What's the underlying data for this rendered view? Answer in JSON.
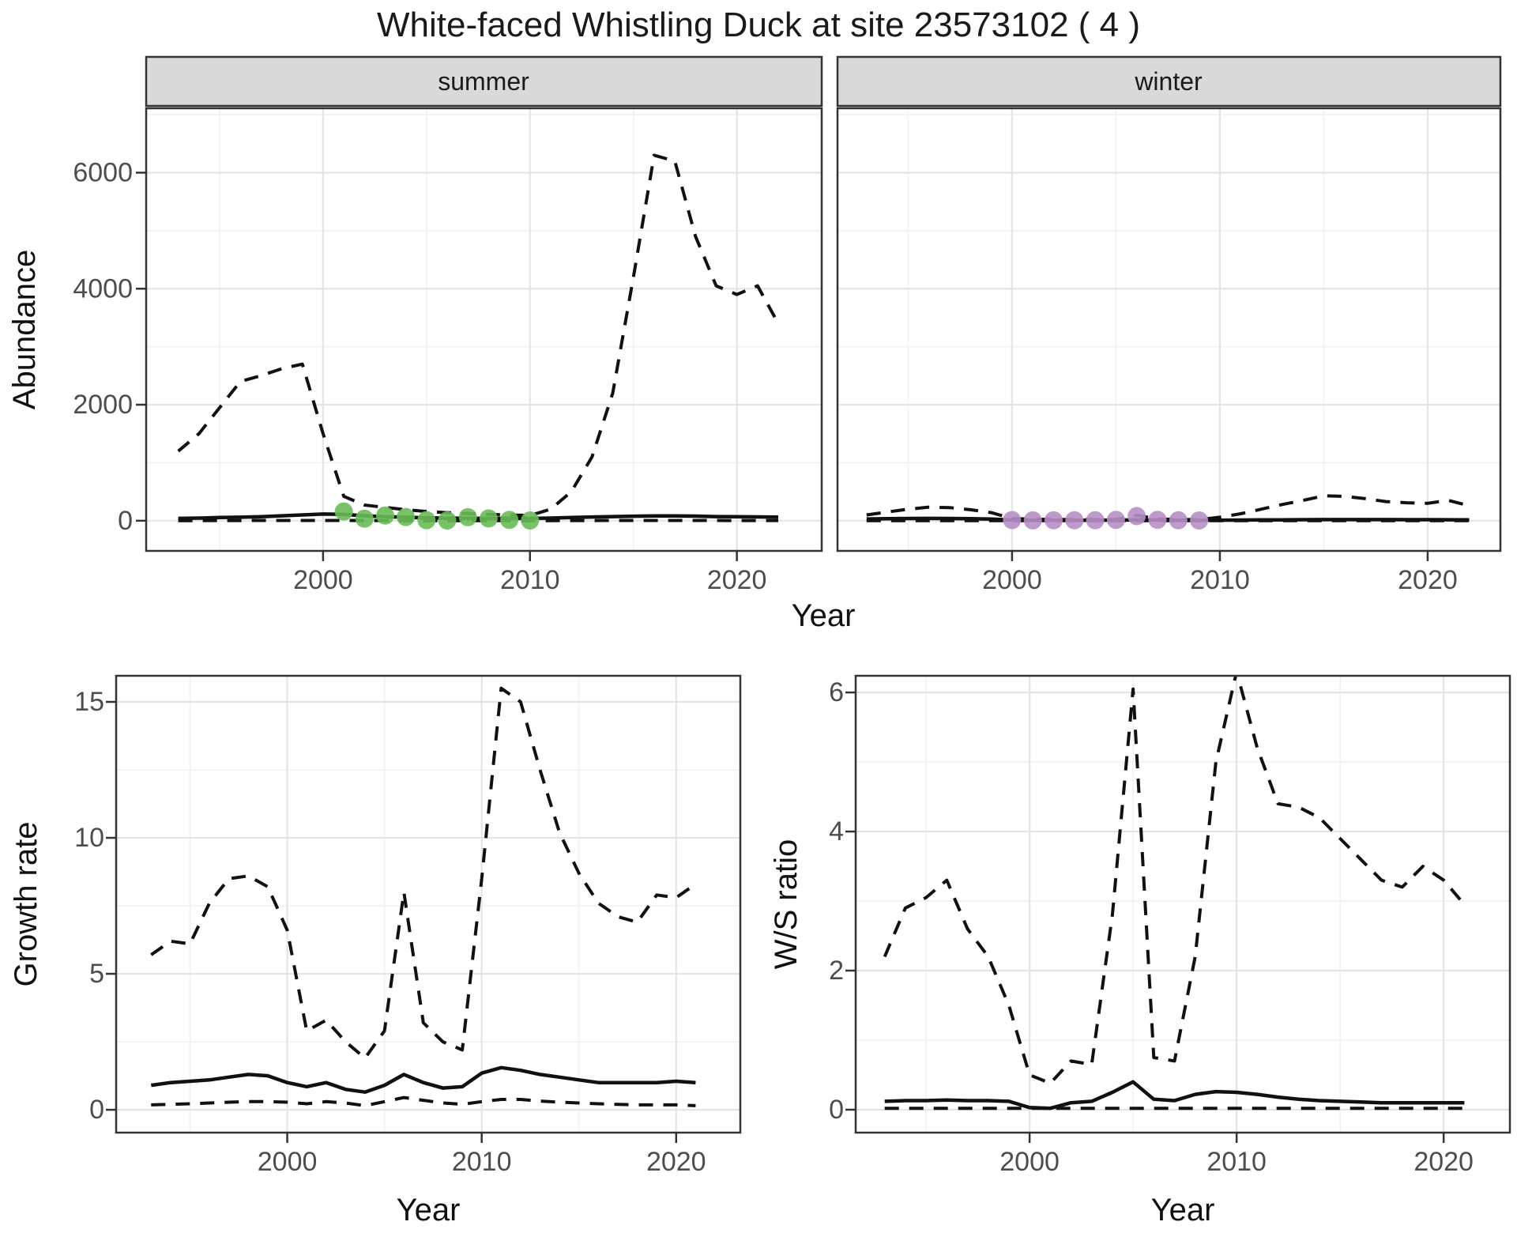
{
  "title": "White-faced Whistling Duck at site 23573102 ( 4 )",
  "facets": {
    "summer": "summer",
    "winter": "winter"
  },
  "axes": {
    "top": {
      "xlabel": "Year",
      "ylabel": "Abundance"
    },
    "bottom_left": {
      "xlabel": "Year",
      "ylabel": "Growth rate"
    },
    "bottom_right": {
      "xlabel": "Year",
      "ylabel": "W/S ratio"
    }
  },
  "colors": {
    "summer_points": "#69BD57",
    "winter_points": "#B78FC6",
    "line": "#111111",
    "strip_bg": "#D9D9D9",
    "panel_border": "#333333",
    "grid_major": "#E4E4E4",
    "grid_minor": "#F1F1F1",
    "tick_label": "#4d4d4d",
    "text": "#1a1a1a"
  },
  "chart_data": [
    {
      "id": "abundance-summer",
      "type": "line",
      "facet": "summer",
      "xlabel": "Year",
      "ylabel": "Abundance",
      "xlim": [
        1991.45,
        2024.1
      ],
      "ylim": [
        -520,
        7110
      ],
      "x_ticks": [
        2000,
        2010,
        2020
      ],
      "x_minor": [
        1995,
        2005,
        2015
      ],
      "y_ticks": [
        0,
        2000,
        4000,
        6000
      ],
      "y_minor": [
        1000,
        3000,
        5000,
        7000
      ],
      "years": [
        1993,
        1994,
        1995,
        1996,
        1997,
        1998,
        1999,
        2000,
        2001,
        2002,
        2003,
        2004,
        2005,
        2006,
        2007,
        2008,
        2009,
        2010,
        2011,
        2012,
        2013,
        2014,
        2015,
        2016,
        2017,
        2018,
        2019,
        2020,
        2021,
        2022
      ],
      "series": [
        {
          "name": "upper-ci",
          "style": "dashed",
          "values": [
            1200,
            1500,
            1950,
            2400,
            2500,
            2620,
            2700,
            1500,
            420,
            270,
            230,
            190,
            160,
            140,
            125,
            110,
            100,
            90,
            200,
            500,
            1100,
            2200,
            4200,
            6300,
            6200,
            4900,
            4050,
            3900,
            4050,
            3400
          ]
        },
        {
          "name": "median",
          "style": "solid",
          "values": [
            40,
            45,
            55,
            60,
            70,
            85,
            100,
            115,
            110,
            85,
            70,
            60,
            50,
            45,
            42,
            40,
            40,
            40,
            45,
            55,
            65,
            72,
            78,
            82,
            83,
            80,
            72,
            68,
            66,
            62
          ]
        },
        {
          "name": "lower-ci",
          "style": "dashed",
          "values": [
            2,
            2,
            3,
            3,
            4,
            4,
            5,
            5,
            4,
            3,
            3,
            2,
            2,
            2,
            2,
            2,
            2,
            2,
            2,
            3,
            3,
            4,
            4,
            5,
            5,
            4,
            4,
            3,
            3,
            3
          ]
        }
      ],
      "points": {
        "name": "observed-summer",
        "color_key": "summer_points",
        "years": [
          2001,
          2002,
          2003,
          2004,
          2005,
          2006,
          2007,
          2008,
          2009,
          2010
        ],
        "values": [
          160,
          35,
          90,
          65,
          10,
          5,
          60,
          40,
          15,
          5
        ]
      }
    },
    {
      "id": "abundance-winter",
      "type": "line",
      "facet": "winter",
      "xlabel": "Year",
      "ylabel": "Abundance",
      "xlim": [
        1991.6,
        2023.5
      ],
      "ylim": [
        -520,
        7110
      ],
      "x_ticks": [
        2000,
        2010,
        2020
      ],
      "x_minor": [
        1995,
        2005,
        2015
      ],
      "y_ticks": [
        0,
        2000,
        4000,
        6000
      ],
      "y_minor": [
        1000,
        3000,
        5000,
        7000
      ],
      "years": [
        1993,
        1994,
        1995,
        1996,
        1997,
        1998,
        1999,
        2000,
        2001,
        2002,
        2003,
        2004,
        2005,
        2006,
        2007,
        2008,
        2009,
        2010,
        2011,
        2012,
        2013,
        2014,
        2015,
        2016,
        2017,
        2018,
        2019,
        2020,
        2021,
        2022
      ],
      "series": [
        {
          "name": "upper-ci",
          "style": "dashed",
          "values": [
            100,
            150,
            200,
            235,
            225,
            190,
            140,
            40,
            25,
            22,
            20,
            20,
            22,
            95,
            30,
            22,
            20,
            60,
            120,
            200,
            280,
            350,
            430,
            420,
            380,
            330,
            310,
            300,
            350,
            260
          ]
        },
        {
          "name": "median",
          "style": "solid",
          "values": [
            30,
            34,
            38,
            40,
            38,
            34,
            28,
            12,
            8,
            8,
            8,
            8,
            10,
            14,
            12,
            10,
            8,
            10,
            12,
            14,
            16,
            18,
            20,
            20,
            20,
            19,
            18,
            18,
            17,
            16
          ]
        },
        {
          "name": "lower-ci",
          "style": "dashed",
          "values": [
            1,
            1,
            1,
            2,
            2,
            1,
            1,
            0,
            0,
            0,
            0,
            0,
            0,
            0,
            0,
            0,
            0,
            0,
            0,
            0,
            1,
            1,
            1,
            1,
            1,
            1,
            1,
            1,
            1,
            1
          ]
        }
      ],
      "points": {
        "name": "observed-winter",
        "color_key": "winter_points",
        "years": [
          2000,
          2001,
          2002,
          2003,
          2004,
          2005,
          2006,
          2007,
          2008,
          2009
        ],
        "values": [
          12,
          6,
          9,
          7,
          8,
          14,
          80,
          16,
          8,
          5
        ]
      }
    },
    {
      "id": "growth-rate",
      "type": "line",
      "facet": null,
      "xlabel": "Year",
      "ylabel": "Growth rate",
      "xlim": [
        1991.2,
        2023.3
      ],
      "ylim": [
        -0.84,
        15.96
      ],
      "x_ticks": [
        2000,
        2010,
        2020
      ],
      "x_minor": [
        1995,
        2005,
        2015
      ],
      "y_ticks": [
        0,
        5,
        10,
        15
      ],
      "y_minor": [
        2.5,
        7.5,
        12.5
      ],
      "years": [
        1993,
        1994,
        1995,
        1996,
        1997,
        1998,
        1999,
        2000,
        2001,
        2002,
        2003,
        2004,
        2005,
        2006,
        2007,
        2008,
        2009,
        2010,
        2011,
        2012,
        2013,
        2014,
        2015,
        2016,
        2017,
        2018,
        2019,
        2020,
        2021
      ],
      "series": [
        {
          "name": "upper-ci",
          "style": "dashed",
          "values": [
            5.7,
            6.2,
            6.1,
            7.6,
            8.5,
            8.6,
            8.2,
            6.6,
            2.9,
            3.3,
            2.5,
            1.9,
            2.9,
            8.0,
            3.2,
            2.5,
            2.2,
            8.5,
            15.5,
            15.0,
            12.5,
            10.2,
            8.7,
            7.6,
            7.1,
            6.9,
            7.9,
            7.8,
            8.3
          ]
        },
        {
          "name": "median",
          "style": "solid",
          "values": [
            0.9,
            1.0,
            1.05,
            1.1,
            1.2,
            1.3,
            1.25,
            1.0,
            0.85,
            1.0,
            0.75,
            0.65,
            0.9,
            1.3,
            1.0,
            0.8,
            0.85,
            1.35,
            1.55,
            1.45,
            1.3,
            1.2,
            1.1,
            1.0,
            1.0,
            1.0,
            1.0,
            1.05,
            1.0
          ]
        },
        {
          "name": "lower-ci",
          "style": "dashed",
          "values": [
            0.18,
            0.2,
            0.22,
            0.25,
            0.28,
            0.3,
            0.3,
            0.28,
            0.22,
            0.3,
            0.25,
            0.15,
            0.3,
            0.45,
            0.35,
            0.25,
            0.2,
            0.3,
            0.38,
            0.38,
            0.32,
            0.28,
            0.25,
            0.22,
            0.2,
            0.18,
            0.18,
            0.18,
            0.15
          ]
        }
      ],
      "points": null
    },
    {
      "id": "ws-ratio",
      "type": "line",
      "facet": null,
      "xlabel": "Year",
      "ylabel": "W/S ratio",
      "xlim": [
        1991.6,
        2023.2
      ],
      "ylim": [
        -0.33,
        6.24
      ],
      "x_ticks": [
        2000,
        2010,
        2020
      ],
      "x_minor": [
        1995,
        2005,
        2015
      ],
      "y_ticks": [
        0,
        2,
        4,
        6
      ],
      "y_minor": [
        1,
        3,
        5
      ],
      "years": [
        1993,
        1994,
        1995,
        1996,
        1997,
        1998,
        1999,
        2000,
        2001,
        2002,
        2003,
        2004,
        2005,
        2006,
        2007,
        2008,
        2009,
        2010,
        2011,
        2012,
        2013,
        2014,
        2015,
        2016,
        2017,
        2018,
        2019,
        2020,
        2021
      ],
      "series": [
        {
          "name": "upper-ci",
          "style": "dashed",
          "values": [
            2.2,
            2.9,
            3.05,
            3.3,
            2.6,
            2.2,
            1.5,
            0.5,
            0.38,
            0.7,
            0.65,
            2.8,
            6.05,
            0.75,
            0.7,
            2.2,
            5.0,
            6.3,
            5.2,
            4.4,
            4.35,
            4.2,
            3.9,
            3.6,
            3.3,
            3.2,
            3.5,
            3.3,
            2.95
          ]
        },
        {
          "name": "median",
          "style": "solid",
          "values": [
            0.12,
            0.13,
            0.13,
            0.14,
            0.13,
            0.13,
            0.12,
            0.03,
            0.02,
            0.1,
            0.12,
            0.25,
            0.4,
            0.15,
            0.13,
            0.22,
            0.26,
            0.25,
            0.22,
            0.18,
            0.15,
            0.13,
            0.12,
            0.11,
            0.1,
            0.1,
            0.1,
            0.1,
            0.1
          ]
        },
        {
          "name": "lower-ci",
          "style": "dashed",
          "values": [
            0.02,
            0.02,
            0.02,
            0.02,
            0.02,
            0.02,
            0.02,
            0.02,
            0.02,
            0.02,
            0.02,
            0.02,
            0.02,
            0.02,
            0.02,
            0.02,
            0.02,
            0.02,
            0.02,
            0.02,
            0.02,
            0.02,
            0.02,
            0.02,
            0.02,
            0.02,
            0.02,
            0.02,
            0.02
          ]
        }
      ],
      "points": null
    }
  ]
}
